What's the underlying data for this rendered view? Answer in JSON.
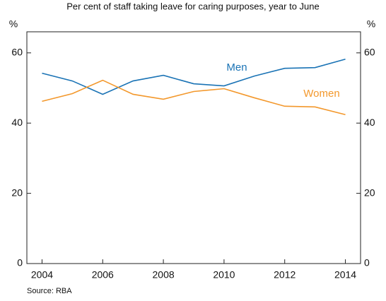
{
  "chart_data": {
    "type": "line",
    "title": "Per cent of staff taking leave for caring purposes, year to June",
    "ylabel": "%",
    "y2label": "%",
    "x": [
      2004,
      2005,
      2006,
      2007,
      2008,
      2009,
      2010,
      2011,
      2012,
      2013,
      2014
    ],
    "series": [
      {
        "name": "Men",
        "color": "#1a73b5",
        "values": [
          54.2,
          52.0,
          48.2,
          52.0,
          53.6,
          51.2,
          50.6,
          53.4,
          55.6,
          55.8,
          58.2
        ]
      },
      {
        "name": "Women",
        "color": "#f3982c",
        "values": [
          46.2,
          48.4,
          52.2,
          48.2,
          46.8,
          49.0,
          49.8,
          47.2,
          44.8,
          44.6,
          42.4
        ]
      }
    ],
    "xlim": [
      2003.5,
      2014.5
    ],
    "xticks": [
      2004,
      2006,
      2008,
      2010,
      2012,
      2014
    ],
    "ylim": [
      0,
      66
    ],
    "yticks": [
      0,
      20,
      40,
      60
    ],
    "y2lim": [
      0,
      66
    ],
    "y2ticks": [
      0,
      20,
      40,
      60
    ],
    "grid": false,
    "source": "Source: RBA"
  }
}
